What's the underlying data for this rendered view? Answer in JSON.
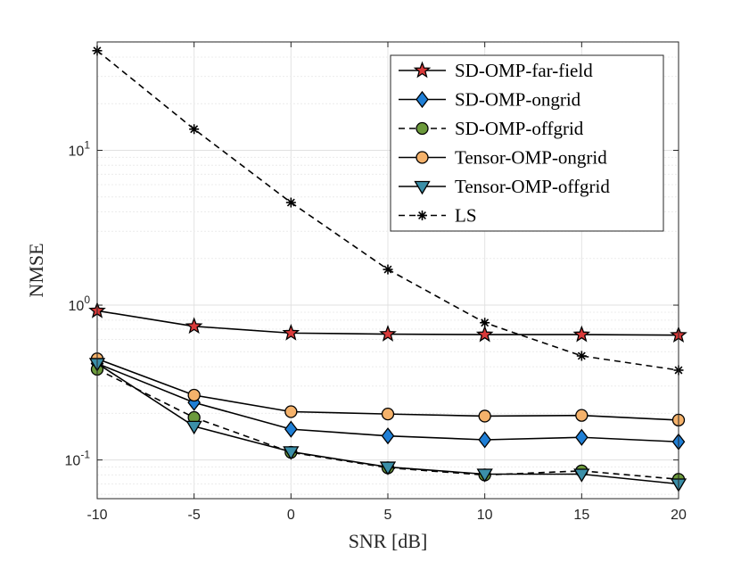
{
  "chart_data": {
    "type": "line",
    "title": "",
    "xlabel": "SNR [dB]",
    "ylabel": "NMSE",
    "yscale": "log",
    "xlim": [
      -10,
      20
    ],
    "ylim_log10": [
      -1.25,
      1.7
    ],
    "grid": true,
    "legend_position": "top-right",
    "x": [
      -10,
      -5,
      0,
      5,
      10,
      15,
      20
    ],
    "x_tick_labels": [
      "-10",
      "-5",
      "0",
      "5",
      "10",
      "15",
      "20"
    ],
    "y_tick_labels": [
      {
        "base": "10",
        "exp": "-1",
        "log": -1
      },
      {
        "base": "10",
        "exp": "0",
        "log": 0
      },
      {
        "base": "10",
        "exp": "1",
        "log": 1
      }
    ],
    "series": [
      {
        "name": "SD-OMP-far-field",
        "marker": "star",
        "dash": "solid",
        "color": "#000000",
        "fill": "#d93a3a",
        "values": [
          0.92,
          0.73,
          0.66,
          0.65,
          0.645,
          0.645,
          0.64
        ]
      },
      {
        "name": "SD-OMP-ongrid",
        "marker": "diamond",
        "dash": "solid",
        "color": "#000000",
        "fill": "#1f7fd6",
        "values": [
          0.42,
          0.235,
          0.158,
          0.143,
          0.135,
          0.14,
          0.131
        ]
      },
      {
        "name": "SD-OMP-offgrid",
        "marker": "circle",
        "dash": "dashed",
        "color": "#000000",
        "fill": "#6c9a3c",
        "values": [
          0.385,
          0.188,
          0.112,
          0.089,
          0.08,
          0.085,
          0.075
        ]
      },
      {
        "name": "Tensor-OMP-ongrid",
        "marker": "circle",
        "dash": "solid",
        "color": "#000000",
        "fill": "#f5b26b",
        "values": [
          0.45,
          0.262,
          0.205,
          0.198,
          0.192,
          0.194,
          0.181
        ]
      },
      {
        "name": "Tensor-OMP-offgrid",
        "marker": "triangle-down",
        "dash": "solid",
        "color": "#000000",
        "fill": "#3b8fa8",
        "values": [
          0.42,
          0.165,
          0.113,
          0.09,
          0.081,
          0.081,
          0.07
        ]
      },
      {
        "name": "LS",
        "marker": "asterisk",
        "dash": "dashed",
        "color": "#000000",
        "fill": "none",
        "values": [
          44,
          13.7,
          4.6,
          1.7,
          0.77,
          0.47,
          0.38
        ]
      }
    ]
  }
}
